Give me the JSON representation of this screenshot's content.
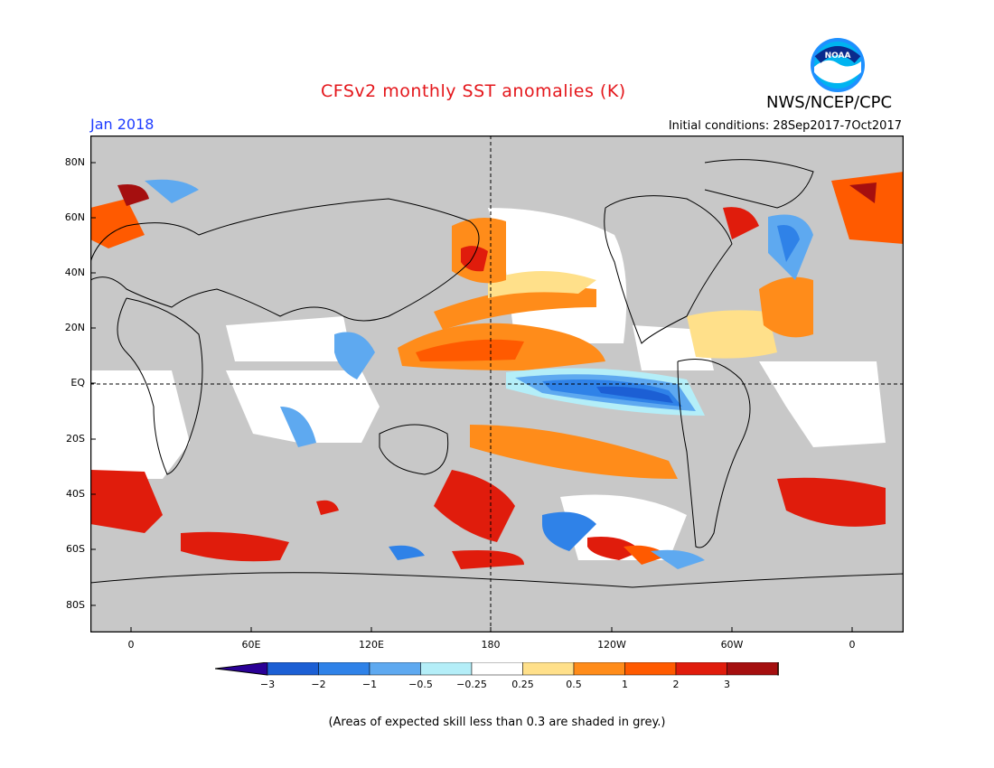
{
  "header": {
    "title": "CFSv2 monthly SST anomalies (K)",
    "agency": "NWS/NCEP/CPC",
    "month": "Jan 2018",
    "initial_conditions": "Initial conditions: 28Sep2017-7Oct2017",
    "logo_text": "NOAA"
  },
  "map": {
    "lat_labels": [
      "80N",
      "60N",
      "40N",
      "20N",
      "EQ",
      "20S",
      "40S",
      "60S",
      "80S"
    ],
    "lon_labels": [
      "0",
      "60E",
      "120E",
      "180",
      "120W",
      "60W",
      "0"
    ],
    "land_color": "#c8c8c8",
    "skill_mask_color": "#c8c8c8",
    "reference_lines": [
      "EQ",
      "180"
    ]
  },
  "colorbar": {
    "labels": [
      "−3",
      "−2",
      "−1",
      "−0.5",
      "−0.25",
      "0.25",
      "0.5",
      "1",
      "2",
      "3"
    ],
    "colors": [
      "#2a0096",
      "#1c5fd4",
      "#2f82e8",
      "#5ea9f0",
      "#b4eef8",
      "#ffffff",
      "#ffe08a",
      "#ff8c1a",
      "#ff5a00",
      "#e01c0c",
      "#a50f0f",
      "#7a5030"
    ]
  },
  "footnote": "(Areas of expected skill less than 0.3 are shaded in grey.)"
}
